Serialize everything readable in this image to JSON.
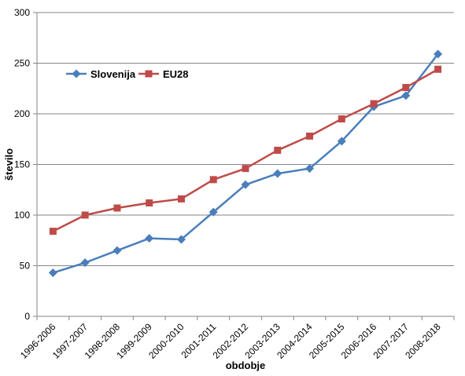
{
  "chart_data": {
    "type": "line",
    "xlabel": "obdobje",
    "ylabel": "število",
    "ylim": [
      0,
      300
    ],
    "yticks": [
      "0",
      "50",
      "100",
      "150",
      "200",
      "250",
      "300"
    ],
    "grid": "horizontal",
    "legend_position": "top-left",
    "categories": [
      "1996-2006",
      "1997-2007",
      "1998-2008",
      "1999-2009",
      "2000-2010",
      "2001-2011",
      "2002-2012",
      "2003-2013",
      "2004-2014",
      "2005-2015",
      "2006-2016",
      "2007-2017",
      "2008-2018"
    ],
    "series": [
      {
        "name": "Slovenija",
        "color": "#4a7ebb",
        "marker": "diamond",
        "values": [
          43,
          53,
          65,
          77,
          76,
          103,
          130,
          141,
          146,
          173,
          207,
          218,
          259
        ]
      },
      {
        "name": "EU28",
        "color": "#be4b48",
        "marker": "square",
        "values": [
          84,
          100,
          107,
          112,
          116,
          135,
          146,
          164,
          178,
          195,
          210,
          226,
          244
        ]
      }
    ]
  }
}
